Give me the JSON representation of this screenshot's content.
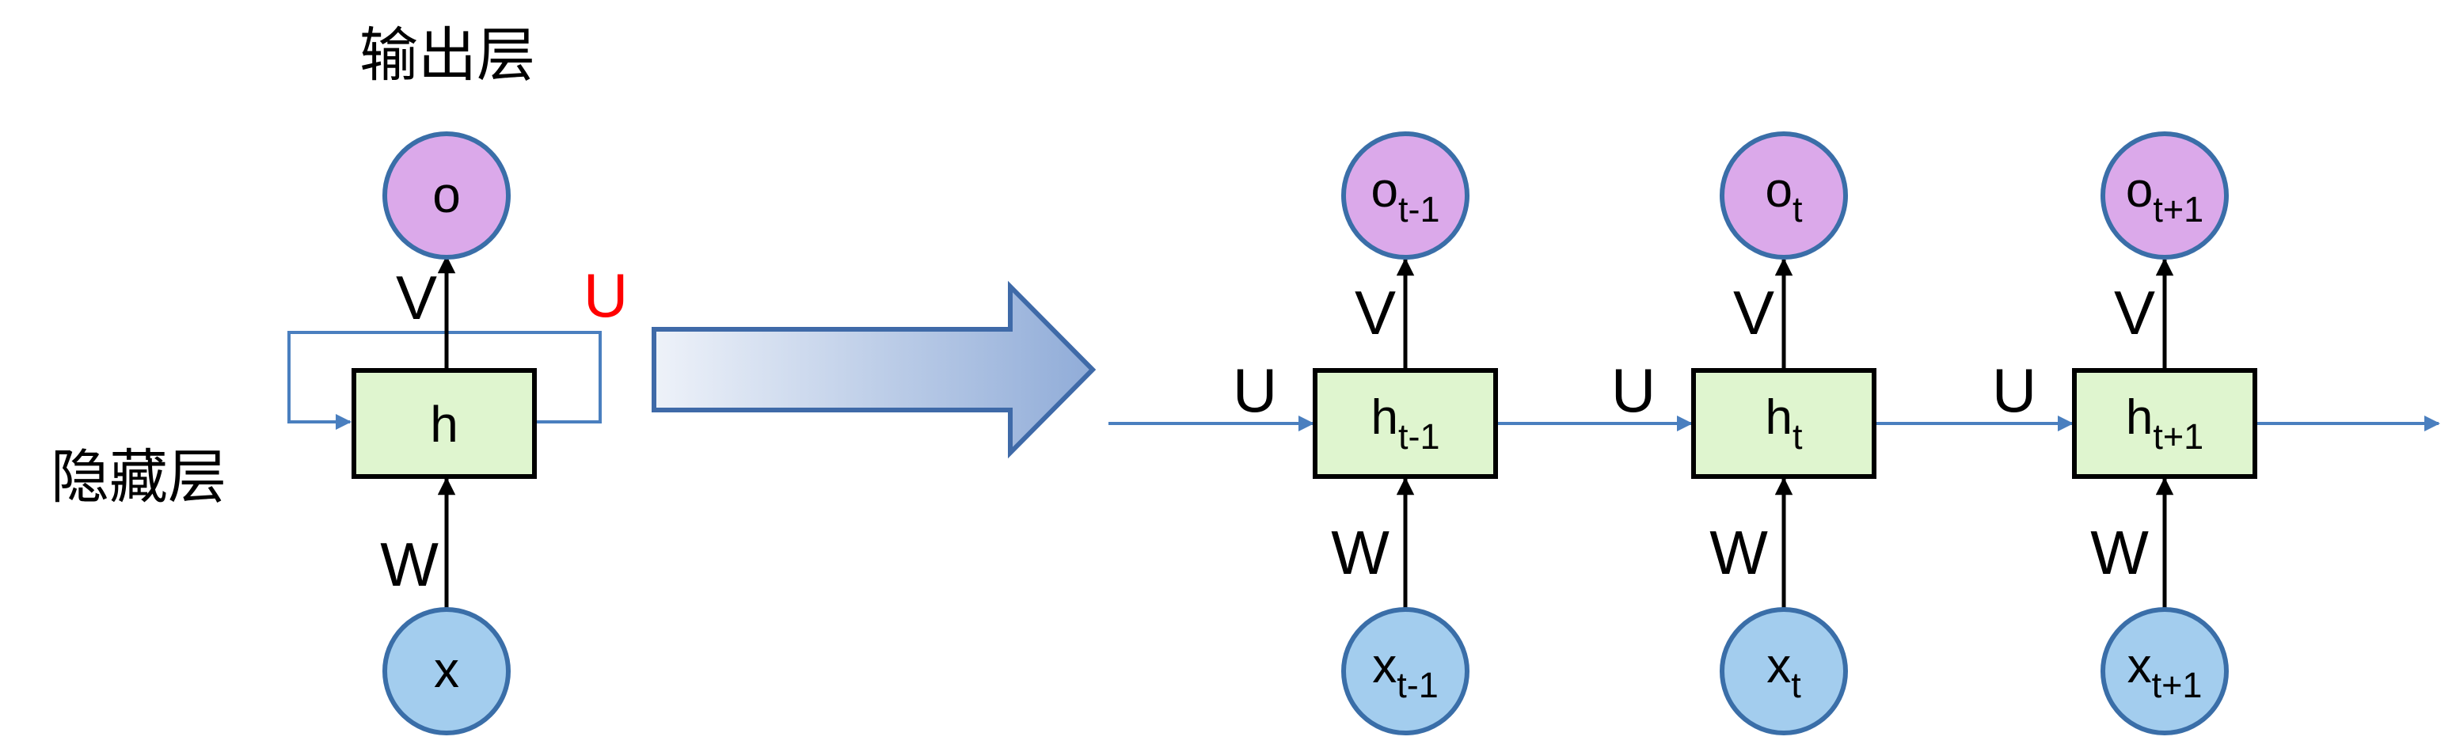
{
  "colors": {
    "output_node": "#dba9ea",
    "input_node": "#a3cdee",
    "hidden_box": "#dff5cf",
    "node_border": "#3a6ea8",
    "blue_line": "#4a7fbf",
    "accent_red": "#ff0000",
    "arrow_gradient_start": "#eef2f9",
    "arrow_gradient_end": "#90acd8"
  },
  "folded": {
    "output_layer_label": "输出层",
    "hidden_layer_label": "隐藏层",
    "output_node": "o",
    "hidden_node": "h",
    "input_node": "x",
    "v_label": "V",
    "w_label": "W",
    "u_label": "U"
  },
  "unfolded": {
    "steps": [
      {
        "o_base": "o",
        "o_sub": "t-1",
        "h_base": "h",
        "h_sub": "t-1",
        "x_base": "x",
        "x_sub": "t-1",
        "v_label": "V",
        "w_label": "W",
        "u_label": "U"
      },
      {
        "o_base": "o",
        "o_sub": "t",
        "h_base": "h",
        "h_sub": "t",
        "x_base": "x",
        "x_sub": "t",
        "v_label": "V",
        "w_label": "W",
        "u_label": "U"
      },
      {
        "o_base": "o",
        "o_sub": "t+1",
        "h_base": "h",
        "h_sub": "t+1",
        "x_base": "x",
        "x_sub": "t+1",
        "v_label": "V",
        "w_label": "W",
        "u_label": "U"
      }
    ]
  }
}
